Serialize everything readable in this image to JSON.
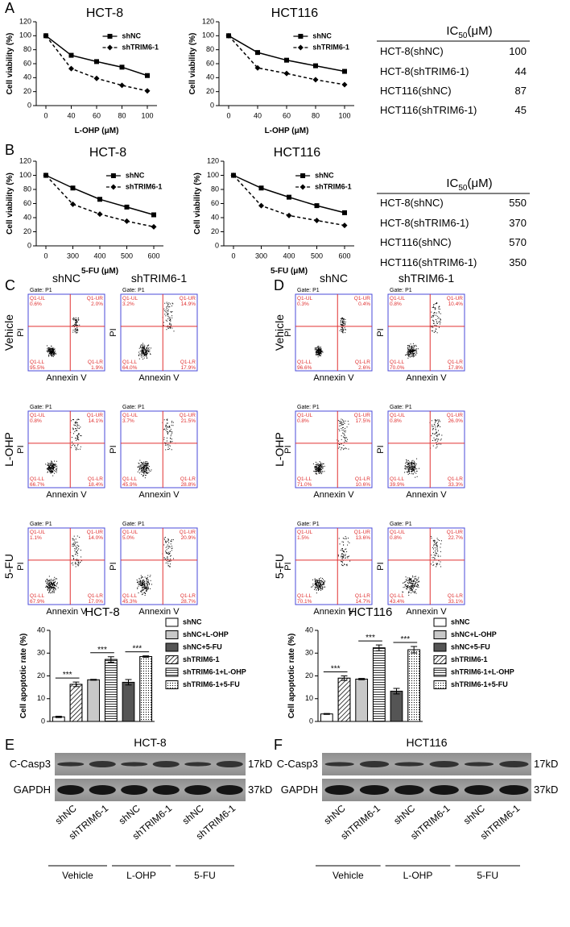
{
  "panel_labels": [
    "A",
    "B",
    "C",
    "D",
    "E",
    "F"
  ],
  "chart_data": [
    {
      "type": "line",
      "title": "HCT-8",
      "x_label": "L-OHP (μM)",
      "y_label": "Cell viability (%)",
      "categories": [
        "0",
        "40",
        "60",
        "80",
        "100"
      ],
      "ylim": [
        0,
        120
      ],
      "yticks": [
        0,
        20,
        40,
        60,
        80,
        100,
        120
      ],
      "legend": "upper right",
      "series": [
        {
          "name": "shNC",
          "color": "#000000",
          "marker": "square",
          "line_style": "solid",
          "values": [
            100,
            72,
            63,
            55,
            43
          ]
        },
        {
          "name": "shTRIM6-1",
          "color": "#000000",
          "marker": "diamond",
          "line_style": "dashed",
          "values": [
            100,
            53,
            39,
            29,
            21
          ]
        }
      ]
    },
    {
      "type": "line",
      "title": "HCT116",
      "x_label": "L-OHP (μM)",
      "y_label": "Cell viability (%)",
      "categories": [
        "0",
        "40",
        "60",
        "80",
        "100"
      ],
      "ylim": [
        0,
        120
      ],
      "yticks": [
        0,
        20,
        40,
        60,
        80,
        100,
        120
      ],
      "legend": "upper right",
      "series": [
        {
          "name": "shNC",
          "color": "#000000",
          "marker": "square",
          "line_style": "solid",
          "values": [
            100,
            76,
            65,
            57,
            49
          ]
        },
        {
          "name": "shTRIM6-1",
          "color": "#000000",
          "marker": "diamond",
          "line_style": "dashed",
          "values": [
            100,
            54,
            46,
            37,
            30
          ]
        }
      ]
    },
    {
      "type": "line",
      "title": "HCT-8",
      "x_label": "5-FU (μM)",
      "y_label": "Cell viability (%)",
      "categories": [
        "0",
        "300",
        "400",
        "500",
        "600"
      ],
      "ylim": [
        0,
        120
      ],
      "yticks": [
        0,
        20,
        40,
        60,
        80,
        100,
        120
      ],
      "legend": "upper right",
      "series": [
        {
          "name": "shNC",
          "color": "#000000",
          "marker": "square",
          "line_style": "solid",
          "values": [
            100,
            82,
            66,
            55,
            44
          ]
        },
        {
          "name": "shTRIM6-1",
          "color": "#000000",
          "marker": "diamond",
          "line_style": "dashed",
          "values": [
            100,
            59,
            45,
            35,
            27
          ]
        }
      ]
    },
    {
      "type": "line",
      "title": "HCT116",
      "x_label": "5-FU (μM)",
      "y_label": "Cell viability (%)",
      "categories": [
        "0",
        "300",
        "400",
        "500",
        "600"
      ],
      "ylim": [
        0,
        120
      ],
      "yticks": [
        0,
        20,
        40,
        60,
        80,
        100,
        120
      ],
      "legend": "upper right",
      "series": [
        {
          "name": "shNC",
          "color": "#000000",
          "marker": "square",
          "line_style": "solid",
          "values": [
            100,
            82,
            69,
            57,
            47
          ]
        },
        {
          "name": "shTRIM6-1",
          "color": "#000000",
          "marker": "diamond",
          "line_style": "dashed",
          "values": [
            100,
            57,
            43,
            36,
            29
          ]
        }
      ]
    },
    {
      "type": "bar",
      "title": "HCT-8",
      "y_label": "Cell apoptotic rate (%)",
      "ylim": [
        0,
        40
      ],
      "yticks": [
        0,
        10,
        20,
        30,
        40
      ],
      "legend": "right",
      "series": [
        {
          "name": "shNC",
          "color": "#ffffff",
          "pattern": "none",
          "values": [
            2.0
          ],
          "errors": [
            0.3
          ]
        },
        {
          "name": "shNC+L-OHP",
          "color": "#c8c8c8",
          "pattern": "none",
          "values": [
            18.3
          ],
          "errors": [
            0.2
          ]
        },
        {
          "name": "shNC+5-FU",
          "color": "#555555",
          "pattern": "none",
          "values": [
            17.2
          ],
          "errors": [
            1.2
          ]
        },
        {
          "name": "shTRIM6-1",
          "color": "#ffffff",
          "pattern": "hatch",
          "values": [
            16.3
          ],
          "errors": [
            1.0
          ]
        },
        {
          "name": "shTRIM6-1+L-OHP",
          "color": "#ffffff",
          "pattern": "hstripe",
          "values": [
            27.2
          ],
          "errors": [
            1.2
          ]
        },
        {
          "name": "shTRIM6-1+5-FU",
          "color": "#ffffff",
          "pattern": "dots",
          "values": [
            28.5
          ],
          "errors": [
            0.3
          ]
        }
      ],
      "significance": [
        "***",
        "***",
        "***"
      ]
    },
    {
      "type": "bar",
      "title": "HCT116",
      "y_label": "Cell apoptotic rate (%)",
      "ylim": [
        0,
        40
      ],
      "yticks": [
        0,
        10,
        20,
        30,
        40
      ],
      "legend": "right",
      "series": [
        {
          "name": "shNC",
          "color": "#ffffff",
          "pattern": "none",
          "values": [
            3.3
          ],
          "errors": [
            0.2
          ]
        },
        {
          "name": "shNC+L-OHP",
          "color": "#c8c8c8",
          "pattern": "none",
          "values": [
            18.6
          ],
          "errors": [
            0.3
          ]
        },
        {
          "name": "shNC+5-FU",
          "color": "#555555",
          "pattern": "none",
          "values": [
            13.3
          ],
          "errors": [
            1.2
          ]
        },
        {
          "name": "shTRIM6-1",
          "color": "#ffffff",
          "pattern": "hatch",
          "values": [
            19.0
          ],
          "errors": [
            1.0
          ]
        },
        {
          "name": "shTRIM6-1+L-OHP",
          "color": "#ffffff",
          "pattern": "hstripe",
          "values": [
            32.3
          ],
          "errors": [
            1.3
          ]
        },
        {
          "name": "shTRIM6-1+5-FU",
          "color": "#ffffff",
          "pattern": "dots",
          "values": [
            31.5
          ],
          "errors": [
            1.4
          ]
        }
      ],
      "significance": [
        "***",
        "***",
        "***"
      ]
    }
  ],
  "ic50_tables": [
    {
      "header": {
        "prefix": "IC",
        "sub": "50",
        "suffix": "(μM)"
      },
      "rows": [
        {
          "label": "HCT-8(shNC)",
          "value": 100
        },
        {
          "label": "HCT-8(shTRIM6-1)",
          "value": 44
        },
        {
          "label": "HCT116(shNC)",
          "value": 87
        },
        {
          "label": "HCT116(shTRIM6-1)",
          "value": 45
        }
      ]
    },
    {
      "header": {
        "prefix": "IC",
        "sub": "50",
        "suffix": "(μM)"
      },
      "rows": [
        {
          "label": "HCT-8(shNC)",
          "value": 550
        },
        {
          "label": "HCT-8(shTRIM6-1)",
          "value": 370
        },
        {
          "label": "HCT116(shNC)",
          "value": 570
        },
        {
          "label": "HCT116(shTRIM6-1)",
          "value": 350
        }
      ]
    }
  ],
  "flow_common": {
    "gate": "Gate: P1",
    "quadrant_names": [
      "Q1-UL",
      "Q1-UR",
      "Q1-LL",
      "Q1-LR"
    ],
    "x_label": "Annexin V",
    "y_label": "PI"
  },
  "flow_panels": [
    {
      "columns": [
        "shNC",
        "shTRIM6-1"
      ],
      "rows": [
        {
          "label": "Vehicle",
          "plots": [
            {
              "quadrants": [
                "0.6%",
                "2.0%",
                "95.5%",
                "1.9%"
              ]
            },
            {
              "quadrants": [
                "3.2%",
                "14.9%",
                "64.0%",
                "17.9%"
              ]
            }
          ]
        },
        {
          "label": "L-OHP",
          "plots": [
            {
              "quadrants": [
                "0.8%",
                "14.1%",
                "66.7%",
                "18.4%"
              ]
            },
            {
              "quadrants": [
                "3.7%",
                "21.5%",
                "45.9%",
                "28.8%"
              ]
            }
          ]
        },
        {
          "label": "5-FU",
          "plots": [
            {
              "quadrants": [
                "1.1%",
                "14.0%",
                "67.9%",
                "17.0%"
              ]
            },
            {
              "quadrants": [
                "5.0%",
                "20.9%",
                "45.3%",
                "28.7%"
              ]
            }
          ]
        }
      ]
    },
    {
      "columns": [
        "shNC",
        "shTRIM6-1"
      ],
      "rows": [
        {
          "label": "Vehicle",
          "plots": [
            {
              "quadrants": [
                "0.3%",
                "0.4%",
                "96.6%",
                "2.6%"
              ]
            },
            {
              "quadrants": [
                "0.8%",
                "10.4%",
                "70.0%",
                "17.8%"
              ]
            }
          ]
        },
        {
          "label": "L-OHP",
          "plots": [
            {
              "quadrants": [
                "0.8%",
                "17.5%",
                "71.0%",
                "10.6%"
              ]
            },
            {
              "quadrants": [
                "0.8%",
                "26.0%",
                "39.9%",
                "33.3%"
              ]
            }
          ]
        },
        {
          "label": "5-FU",
          "plots": [
            {
              "quadrants": [
                "1.5%",
                "13.6%",
                "70.1%",
                "14.7%"
              ]
            },
            {
              "quadrants": [
                "0.8%",
                "22.7%",
                "43.4%",
                "33.1%"
              ]
            }
          ]
        }
      ]
    }
  ],
  "western": [
    {
      "title": "HCT-8",
      "rows": [
        {
          "label": "C-Casp3",
          "size": "17kD"
        },
        {
          "label": "GAPDH",
          "size": "37kD"
        }
      ],
      "lanes": [
        "shNC",
        "shTRIM6-1",
        "shNC",
        "shTRIM6-1",
        "shNC",
        "shTRIM6-1"
      ],
      "groups": [
        "Vehicle",
        "L-OHP",
        "5-FU"
      ]
    },
    {
      "title": "HCT116",
      "rows": [
        {
          "label": "C-Casp3",
          "size": "17kD"
        },
        {
          "label": "GAPDH",
          "size": "37kD"
        }
      ],
      "lanes": [
        "shNC",
        "shTRIM6-1",
        "shNC",
        "shTRIM6-1",
        "shNC",
        "shTRIM6-1"
      ],
      "groups": [
        "Vehicle",
        "L-OHP",
        "5-FU"
      ]
    }
  ]
}
